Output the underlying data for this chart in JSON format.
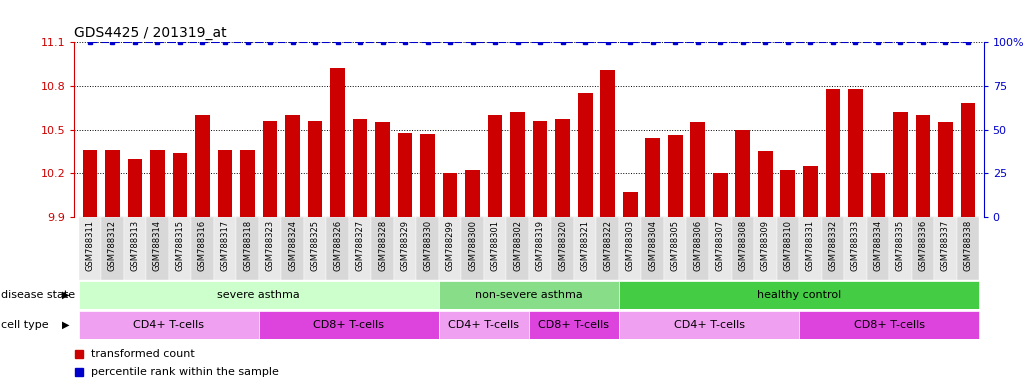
{
  "title": "GDS4425 / 201319_at",
  "samples": [
    "GSM788311",
    "GSM788312",
    "GSM788313",
    "GSM788314",
    "GSM788315",
    "GSM788316",
    "GSM788317",
    "GSM788318",
    "GSM788323",
    "GSM788324",
    "GSM788325",
    "GSM788326",
    "GSM788327",
    "GSM788328",
    "GSM788329",
    "GSM788330",
    "GSM788299",
    "GSM788300",
    "GSM788301",
    "GSM788302",
    "GSM788319",
    "GSM788320",
    "GSM788321",
    "GSM788322",
    "GSM788303",
    "GSM788304",
    "GSM788305",
    "GSM788306",
    "GSM788307",
    "GSM788308",
    "GSM788309",
    "GSM788310",
    "GSM788331",
    "GSM788332",
    "GSM788333",
    "GSM788334",
    "GSM788335",
    "GSM788336",
    "GSM788337",
    "GSM788338"
  ],
  "values": [
    10.36,
    10.36,
    10.3,
    10.36,
    10.34,
    10.6,
    10.36,
    10.36,
    10.56,
    10.6,
    10.56,
    10.92,
    10.57,
    10.55,
    10.48,
    10.47,
    10.2,
    10.22,
    10.6,
    10.62,
    10.56,
    10.57,
    10.75,
    10.91,
    10.07,
    10.44,
    10.46,
    10.55,
    10.2,
    10.5,
    10.35,
    10.22,
    10.25,
    10.78,
    10.78,
    10.2,
    10.62,
    10.6,
    10.55,
    10.68
  ],
  "ylim_left": [
    9.9,
    11.1
  ],
  "ylim_right": [
    0,
    100
  ],
  "yticks_left": [
    9.9,
    10.2,
    10.5,
    10.8,
    11.1
  ],
  "yticks_right": [
    0,
    25,
    50,
    75,
    100
  ],
  "bar_color": "#cc0000",
  "percentile_color": "#0000cc",
  "disease_state_groups": [
    {
      "label": "severe asthma",
      "start": 0,
      "end": 15,
      "color": "#ccffcc"
    },
    {
      "label": "non-severe asthma",
      "start": 16,
      "end": 23,
      "color": "#88dd88"
    },
    {
      "label": "healthy control",
      "start": 24,
      "end": 39,
      "color": "#44cc44"
    }
  ],
  "cell_type_groups": [
    {
      "label": "CD4+ T-cells",
      "start": 0,
      "end": 7,
      "color": "#f0a0f0"
    },
    {
      "label": "CD8+ T-cells",
      "start": 8,
      "end": 15,
      "color": "#dd44dd"
    },
    {
      "label": "CD4+ T-cells",
      "start": 16,
      "end": 19,
      "color": "#f0a0f0"
    },
    {
      "label": "CD8+ T-cells",
      "start": 20,
      "end": 23,
      "color": "#dd44dd"
    },
    {
      "label": "CD4+ T-cells",
      "start": 24,
      "end": 31,
      "color": "#f0a0f0"
    },
    {
      "label": "CD8+ T-cells",
      "start": 32,
      "end": 39,
      "color": "#dd44dd"
    }
  ]
}
